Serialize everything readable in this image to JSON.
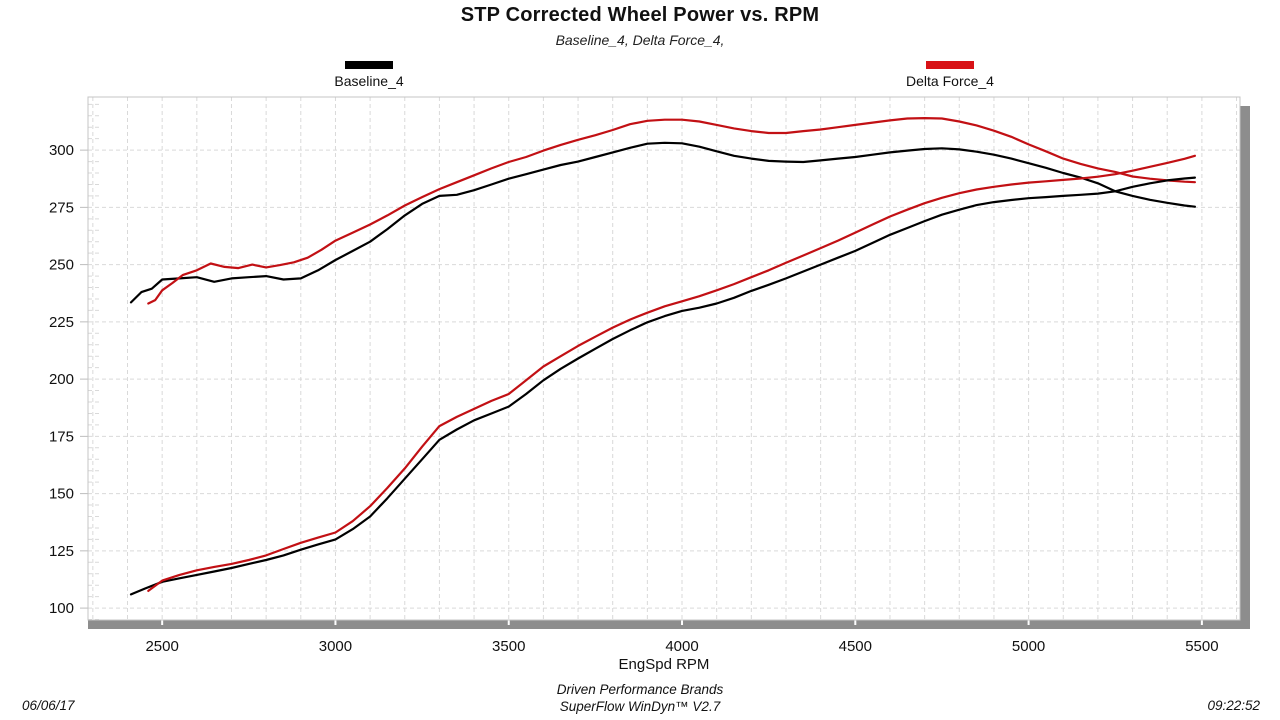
{
  "header": {
    "title": "STP Corrected Wheel Power vs. RPM",
    "subtitle": "Baseline_4, Delta Force_4,"
  },
  "legend": {
    "items": [
      {
        "label": "Baseline_4",
        "color": "#000000"
      },
      {
        "label": "Delta Force_4",
        "color": "#d81216"
      }
    ]
  },
  "footer": {
    "date": "06/06/17",
    "brand": "Driven Performance Brands",
    "software": "SuperFlow WinDyn™ V2.7",
    "time": "09:22:52"
  },
  "chart_data": {
    "type": "line",
    "title": "STP Corrected Wheel Power vs. RPM",
    "xlabel": "EngSpd  RPM",
    "ylabel": "",
    "x_range": [
      2286,
      5610
    ],
    "y_range": [
      94.8,
      323.2
    ],
    "x_ticks": [
      2500,
      3000,
      3500,
      4000,
      4500,
      5000,
      5500
    ],
    "y_ticks": [
      100,
      125,
      150,
      175,
      200,
      225,
      250,
      275,
      300
    ],
    "x_grid_step": 100,
    "x_grid_start": 2300,
    "x_grid_end": 5600,
    "y_minor_step": 5,
    "grid": true,
    "grid_color": "#d9d9d9",
    "border_color": "#c4c4c4",
    "shadow_color": "#8d8d8d",
    "legend_position": "top",
    "series": [
      {
        "name": "Baseline_4 upper (torque-shaped trace)",
        "color": "#000000",
        "x": [
          2410,
          2440,
          2470,
          2500,
          2550,
          2600,
          2650,
          2700,
          2750,
          2800,
          2850,
          2900,
          2950,
          3000,
          3050,
          3100,
          3150,
          3200,
          3250,
          3300,
          3350,
          3400,
          3450,
          3500,
          3550,
          3600,
          3650,
          3700,
          3750,
          3800,
          3850,
          3900,
          3950,
          4000,
          4050,
          4100,
          4150,
          4200,
          4250,
          4300,
          4350,
          4400,
          4450,
          4500,
          4550,
          4600,
          4650,
          4700,
          4750,
          4800,
          4850,
          4900,
          4950,
          5000,
          5050,
          5100,
          5150,
          5200,
          5250,
          5300,
          5350,
          5400,
          5450,
          5480
        ],
        "values": [
          233.5,
          238,
          239.5,
          243.5,
          244,
          244.5,
          242.5,
          244,
          244.5,
          245,
          243.5,
          244,
          247.5,
          252,
          256,
          260,
          265.5,
          271.5,
          276.5,
          280,
          280.5,
          282.5,
          285,
          287.5,
          289.5,
          291.5,
          293.5,
          295,
          297,
          299,
          301,
          302.8,
          303.2,
          303,
          301.5,
          299.5,
          297.5,
          296.3,
          295.3,
          295,
          294.8,
          295.5,
          296.3,
          297,
          298,
          299,
          299.8,
          300.5,
          300.8,
          300.3,
          299.3,
          298,
          296.3,
          294.3,
          292.3,
          290,
          288,
          285.5,
          282,
          280,
          278.3,
          277,
          275.8,
          275.3
        ]
      },
      {
        "name": "Delta Force_4 upper (torque-shaped trace)",
        "color": "#c21014",
        "x": [
          2460,
          2480,
          2500,
          2530,
          2560,
          2600,
          2640,
          2680,
          2720,
          2760,
          2800,
          2840,
          2880,
          2920,
          2960,
          3000,
          3050,
          3100,
          3150,
          3200,
          3250,
          3300,
          3350,
          3400,
          3450,
          3500,
          3550,
          3600,
          3650,
          3700,
          3750,
          3800,
          3850,
          3900,
          3950,
          4000,
          4050,
          4100,
          4150,
          4200,
          4250,
          4300,
          4350,
          4400,
          4450,
          4500,
          4550,
          4600,
          4650,
          4700,
          4750,
          4800,
          4850,
          4900,
          4950,
          5000,
          5050,
          5100,
          5150,
          5200,
          5250,
          5300,
          5350,
          5400,
          5450,
          5480
        ],
        "values": [
          233,
          234.5,
          238.8,
          242,
          245.5,
          247.5,
          250.5,
          249,
          248.5,
          250,
          248.8,
          249.8,
          251,
          253,
          256.5,
          260.5,
          264,
          267.5,
          271.5,
          275.8,
          279.5,
          283,
          286,
          289,
          292,
          294.8,
          297,
          299.8,
          302.3,
          304.5,
          306.5,
          308.8,
          311.3,
          312.8,
          313.3,
          313.3,
          312.5,
          311,
          309.5,
          308.3,
          307.5,
          307.5,
          308.3,
          309,
          310,
          311,
          312,
          313,
          313.8,
          314,
          313.8,
          312.5,
          310.8,
          308.5,
          305.8,
          302.5,
          299.5,
          296.3,
          294,
          292,
          290.5,
          288.5,
          287.5,
          286.8,
          286.2,
          286
        ]
      },
      {
        "name": "Baseline_4 lower (power-shaped trace)",
        "color": "#000000",
        "x": [
          2410,
          2450,
          2500,
          2550,
          2600,
          2650,
          2700,
          2750,
          2800,
          2850,
          2900,
          2950,
          3000,
          3050,
          3100,
          3150,
          3200,
          3250,
          3300,
          3350,
          3400,
          3450,
          3500,
          3550,
          3600,
          3650,
          3700,
          3750,
          3800,
          3850,
          3900,
          3950,
          4000,
          4050,
          4100,
          4150,
          4200,
          4250,
          4300,
          4350,
          4400,
          4450,
          4500,
          4550,
          4600,
          4650,
          4700,
          4750,
          4800,
          4850,
          4900,
          4950,
          5000,
          5050,
          5100,
          5150,
          5200,
          5250,
          5300,
          5350,
          5400,
          5450,
          5480
        ],
        "values": [
          106,
          108.5,
          111.5,
          113,
          114.5,
          116,
          117.5,
          119.3,
          121,
          123,
          125.5,
          127.8,
          130,
          134.5,
          140,
          148,
          156.5,
          165,
          173.5,
          178,
          182,
          185,
          188,
          193.5,
          199.5,
          204.5,
          209,
          213.3,
          217.5,
          221.3,
          224.8,
          227.5,
          229.8,
          231.2,
          233,
          235.5,
          238.5,
          241.2,
          244,
          247,
          250,
          253,
          256,
          259.5,
          263,
          266,
          269,
          271.8,
          274,
          276,
          277.3,
          278.2,
          279,
          279.5,
          280,
          280.5,
          281,
          282,
          284,
          285.5,
          286.8,
          287.6,
          288
        ]
      },
      {
        "name": "Delta Force_4 lower (power-shaped trace)",
        "color": "#c21014",
        "x": [
          2460,
          2500,
          2550,
          2600,
          2650,
          2700,
          2750,
          2800,
          2850,
          2900,
          2950,
          3000,
          3050,
          3100,
          3150,
          3200,
          3250,
          3300,
          3350,
          3400,
          3450,
          3500,
          3550,
          3600,
          3650,
          3700,
          3750,
          3800,
          3850,
          3900,
          3950,
          4000,
          4050,
          4100,
          4150,
          4200,
          4250,
          4300,
          4350,
          4400,
          4450,
          4500,
          4550,
          4600,
          4650,
          4700,
          4750,
          4800,
          4850,
          4900,
          4950,
          5000,
          5050,
          5100,
          5150,
          5200,
          5250,
          5300,
          5350,
          5400,
          5450,
          5480
        ],
        "values": [
          107.5,
          112,
          114.5,
          116.5,
          118,
          119.3,
          121,
          123,
          125.8,
          128.5,
          130.8,
          133,
          138,
          144.5,
          152.5,
          161,
          170.5,
          179.5,
          183.5,
          187,
          190.5,
          193.5,
          199.5,
          205.5,
          210,
          214.5,
          218.5,
          222.5,
          226,
          229,
          231.8,
          234,
          236.2,
          238.8,
          241.5,
          244.5,
          247.5,
          250.8,
          254,
          257.2,
          260.5,
          264,
          267.5,
          271,
          274,
          276.8,
          279.2,
          281.2,
          282.8,
          284,
          285,
          285.8,
          286.4,
          287,
          287.6,
          288.4,
          289.5,
          291,
          292.7,
          294.4,
          296.2,
          297.5
        ]
      }
    ]
  }
}
